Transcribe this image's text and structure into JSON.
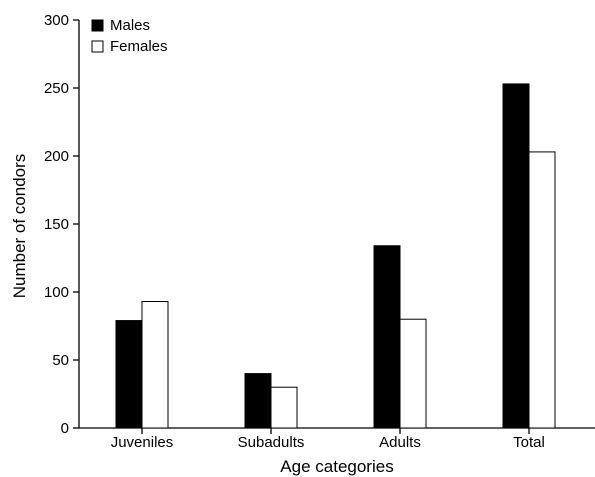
{
  "chart_data": {
    "type": "bar",
    "title": "",
    "xlabel": "Age categories",
    "ylabel": "Number of condors",
    "categories": [
      "Juveniles",
      "Subadults",
      "Adults",
      "Total"
    ],
    "series": [
      {
        "name": "Males",
        "values": [
          79,
          40,
          134,
          253
        ],
        "color": "#000000"
      },
      {
        "name": "Females",
        "values": [
          93,
          30,
          80,
          203
        ],
        "color": "#ffffff"
      }
    ],
    "ylim": [
      0,
      300
    ],
    "yticks": [
      0,
      50,
      100,
      150,
      200,
      250,
      300
    ],
    "grid": false,
    "legend": "top-left"
  }
}
